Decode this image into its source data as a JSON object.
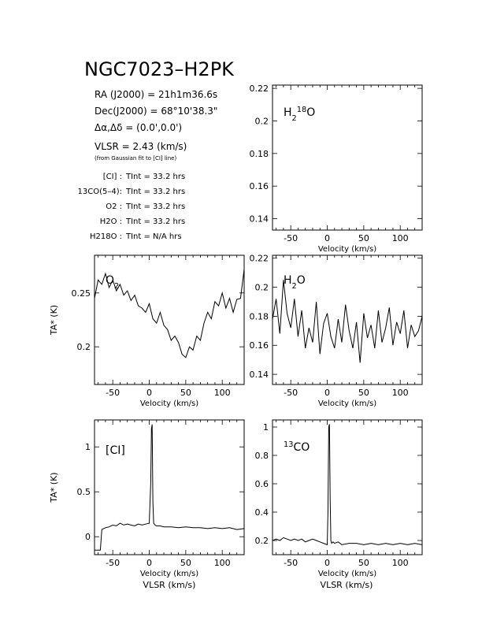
{
  "header": {
    "title": "NGC7023–H2PK",
    "ra": "RA (J2000) = 21h1m36.6s",
    "dec": "Dec(J2000) = 68°10'38.3\"",
    "offset": "Δα,Δδ = (0.0',0.0')",
    "vlsr": "VLSR = 2.43 (km/s)",
    "vlsr_note": "(from Gaussian fit to [CI] line)",
    "int_times": [
      {
        "label": "[CI] :",
        "value": "TInt = 33.2 hrs"
      },
      {
        "label": "13CO(5–4):",
        "value": "TInt = 33.2 hrs"
      },
      {
        "label": "O2 :",
        "value": "TInt = 33.2 hrs"
      },
      {
        "label": "H2O :",
        "value": "TInt = 33.2 hrs"
      },
      {
        "label": "H218O :",
        "value": "TInt = N/A hrs"
      }
    ]
  },
  "chart_data": [
    {
      "type": "line",
      "label": "H218O",
      "xlabel": "Velocity (km/s)",
      "ylabel": "",
      "xlim": [
        -75,
        130
      ],
      "ylim": [
        0.133,
        0.222
      ],
      "xticks": [
        -50,
        0,
        50,
        100
      ],
      "yticks": [
        0.14,
        0.16,
        0.18,
        0.2,
        0.22
      ],
      "ytick_labels": [
        "0.14",
        "0.16",
        "0.18",
        "0.2",
        "0.22"
      ],
      "x": [],
      "y": []
    },
    {
      "type": "line",
      "label": "O2",
      "xlabel": "Velocity (km/s)",
      "ylabel": "TA* (K)",
      "xlim": [
        -75,
        130
      ],
      "ylim": [
        0.165,
        0.285
      ],
      "xticks": [
        -50,
        0,
        50,
        100
      ],
      "yticks": [
        0.2,
        0.25
      ],
      "ytick_labels": [
        "0.2",
        "0.25"
      ],
      "x": [
        -75,
        -70,
        -65,
        -60,
        -55,
        -50,
        -45,
        -40,
        -35,
        -30,
        -25,
        -20,
        -15,
        -10,
        -5,
        0,
        5,
        10,
        15,
        20,
        25,
        30,
        35,
        40,
        45,
        50,
        55,
        60,
        65,
        70,
        75,
        80,
        85,
        90,
        95,
        100,
        105,
        110,
        115,
        120,
        125,
        130
      ],
      "y": [
        0.245,
        0.262,
        0.258,
        0.268,
        0.255,
        0.262,
        0.252,
        0.258,
        0.248,
        0.252,
        0.243,
        0.248,
        0.238,
        0.236,
        0.232,
        0.24,
        0.226,
        0.222,
        0.232,
        0.22,
        0.216,
        0.206,
        0.21,
        0.204,
        0.193,
        0.19,
        0.2,
        0.197,
        0.21,
        0.206,
        0.222,
        0.232,
        0.226,
        0.242,
        0.238,
        0.25,
        0.236,
        0.245,
        0.232,
        0.244,
        0.245,
        0.272
      ]
    },
    {
      "type": "line",
      "label": "H2O",
      "xlabel": "Velocity (km/s)",
      "ylabel": "",
      "xlim": [
        -75,
        130
      ],
      "ylim": [
        0.133,
        0.222
      ],
      "xticks": [
        -50,
        0,
        50,
        100
      ],
      "yticks": [
        0.14,
        0.16,
        0.18,
        0.2,
        0.22
      ],
      "ytick_labels": [
        "0.14",
        "0.16",
        "0.18",
        "0.2",
        "0.22"
      ],
      "x": [
        -75,
        -70,
        -65,
        -60,
        -55,
        -50,
        -45,
        -40,
        -35,
        -30,
        -25,
        -20,
        -15,
        -10,
        -5,
        0,
        5,
        10,
        15,
        20,
        25,
        30,
        35,
        40,
        45,
        50,
        55,
        60,
        65,
        70,
        75,
        80,
        85,
        90,
        95,
        100,
        105,
        110,
        115,
        120,
        125,
        130
      ],
      "y": [
        0.178,
        0.192,
        0.168,
        0.205,
        0.182,
        0.172,
        0.192,
        0.166,
        0.184,
        0.158,
        0.172,
        0.162,
        0.19,
        0.154,
        0.175,
        0.182,
        0.166,
        0.158,
        0.178,
        0.162,
        0.188,
        0.17,
        0.158,
        0.176,
        0.148,
        0.182,
        0.165,
        0.174,
        0.158,
        0.184,
        0.162,
        0.172,
        0.186,
        0.16,
        0.176,
        0.168,
        0.184,
        0.158,
        0.174,
        0.166,
        0.17,
        0.18
      ]
    },
    {
      "type": "line",
      "label": "[CI]",
      "xlabel": "Velocity (km/s)",
      "ylabel": "TA* (K)",
      "xlim": [
        -75,
        130
      ],
      "ylim": [
        -0.2,
        1.3
      ],
      "xticks": [
        -50,
        0,
        50,
        100
      ],
      "yticks": [
        0,
        0.5,
        1
      ],
      "ytick_labels": [
        "0",
        "0.5",
        "1"
      ],
      "x": [
        -75,
        -70,
        -67,
        -65,
        -60,
        -55,
        -50,
        -45,
        -40,
        -35,
        -30,
        -25,
        -20,
        -15,
        -10,
        -5,
        0,
        2,
        3,
        4,
        5,
        6,
        8,
        10,
        15,
        20,
        30,
        40,
        50,
        60,
        70,
        80,
        90,
        100,
        110,
        120,
        130
      ],
      "y": [
        -0.15,
        -0.15,
        -0.15,
        0.08,
        0.1,
        0.11,
        0.13,
        0.12,
        0.15,
        0.13,
        0.14,
        0.13,
        0.12,
        0.14,
        0.13,
        0.14,
        0.15,
        0.6,
        1.2,
        1.25,
        0.4,
        0.15,
        0.13,
        0.12,
        0.12,
        0.11,
        0.11,
        0.1,
        0.11,
        0.1,
        0.1,
        0.09,
        0.1,
        0.09,
        0.1,
        0.08,
        0.09
      ]
    },
    {
      "type": "line",
      "label": "13CO",
      "xlabel": "Velocity (km/s)",
      "ylabel": "",
      "xlim": [
        -75,
        130
      ],
      "ylim": [
        0.1,
        1.05
      ],
      "xticks": [
        -50,
        0,
        50,
        100
      ],
      "yticks": [
        0.2,
        0.4,
        0.6,
        0.8,
        1
      ],
      "ytick_labels": [
        "0.2",
        "0.4",
        "0.6",
        "0.8",
        "1"
      ],
      "x": [
        -75,
        -70,
        -65,
        -60,
        -55,
        -50,
        -45,
        -40,
        -35,
        -30,
        -25,
        -20,
        -15,
        -10,
        -5,
        0,
        1,
        2,
        3,
        4,
        5,
        6,
        8,
        10,
        15,
        20,
        30,
        40,
        50,
        60,
        70,
        80,
        90,
        100,
        110,
        120,
        130
      ],
      "y": [
        0.2,
        0.21,
        0.2,
        0.22,
        0.21,
        0.2,
        0.21,
        0.2,
        0.21,
        0.19,
        0.2,
        0.21,
        0.2,
        0.19,
        0.18,
        0.17,
        0.4,
        1.0,
        1.02,
        0.5,
        0.2,
        0.18,
        0.19,
        0.18,
        0.19,
        0.17,
        0.18,
        0.18,
        0.17,
        0.18,
        0.17,
        0.18,
        0.17,
        0.18,
        0.17,
        0.18,
        0.17
      ]
    }
  ],
  "footer": {
    "vlsr_axis_label": "VLSR (km/s)"
  }
}
